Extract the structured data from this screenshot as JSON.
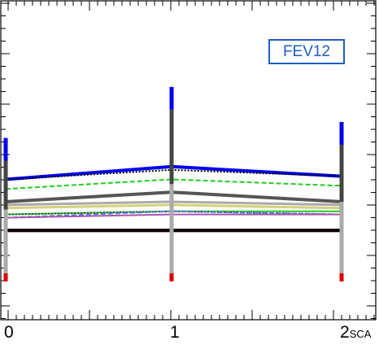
{
  "legend": {
    "label": "FEV12"
  },
  "chart_data": {
    "type": "line",
    "title": "",
    "xlabel": "SCA",
    "ylabel": "",
    "categories": [
      "0",
      "1",
      "2"
    ],
    "x": [
      0,
      1,
      2
    ],
    "xtick_labels": [
      "0",
      "1",
      "2"
    ],
    "xlabel_subscript": "SCA",
    "ylim": [
      0,
      100
    ],
    "grid": false,
    "legend_position": "top-right",
    "series": [
      {
        "color": "#0000ee",
        "style": "solid",
        "width": 4,
        "values": [
          44,
          48,
          45
        ]
      },
      {
        "color": "#000000",
        "style": "dotted",
        "width": 2,
        "values": [
          44,
          47,
          45
        ]
      },
      {
        "color": "#22cc22",
        "style": "dashed",
        "width": 2,
        "values": [
          41,
          44,
          42
        ]
      },
      {
        "color": "#555555",
        "style": "solid",
        "width": 4,
        "values": [
          37,
          40,
          37
        ]
      },
      {
        "color": "#aaaaaa",
        "style": "solid",
        "width": 3,
        "values": [
          36,
          37,
          36
        ]
      },
      {
        "color": "#d2d27a",
        "style": "solid",
        "width": 3,
        "values": [
          35,
          36,
          35
        ]
      },
      {
        "color": "#22cc22",
        "style": "solid",
        "width": 2,
        "values": [
          33,
          34,
          34
        ]
      },
      {
        "color": "#444444",
        "style": "dotted",
        "width": 2,
        "values": [
          33,
          34,
          33
        ]
      },
      {
        "color": "#5577ee",
        "style": "dashed",
        "width": 2,
        "values": [
          32,
          34,
          33
        ]
      },
      {
        "color": "#aa55aa",
        "style": "solid",
        "width": 2,
        "values": [
          32,
          33,
          33
        ]
      },
      {
        "color": "#dd0000",
        "style": "solid",
        "width": 4,
        "values": [
          28,
          28,
          28
        ]
      },
      {
        "color": "#000000",
        "style": "solid",
        "width": 4,
        "values": [
          28,
          28,
          28
        ]
      }
    ],
    "error_bars": [
      {
        "x": 0,
        "low": 12,
        "high": 57
      },
      {
        "x": 1,
        "low": 12,
        "high": 73
      },
      {
        "x": 2,
        "low": 12,
        "high": 62
      }
    ]
  }
}
